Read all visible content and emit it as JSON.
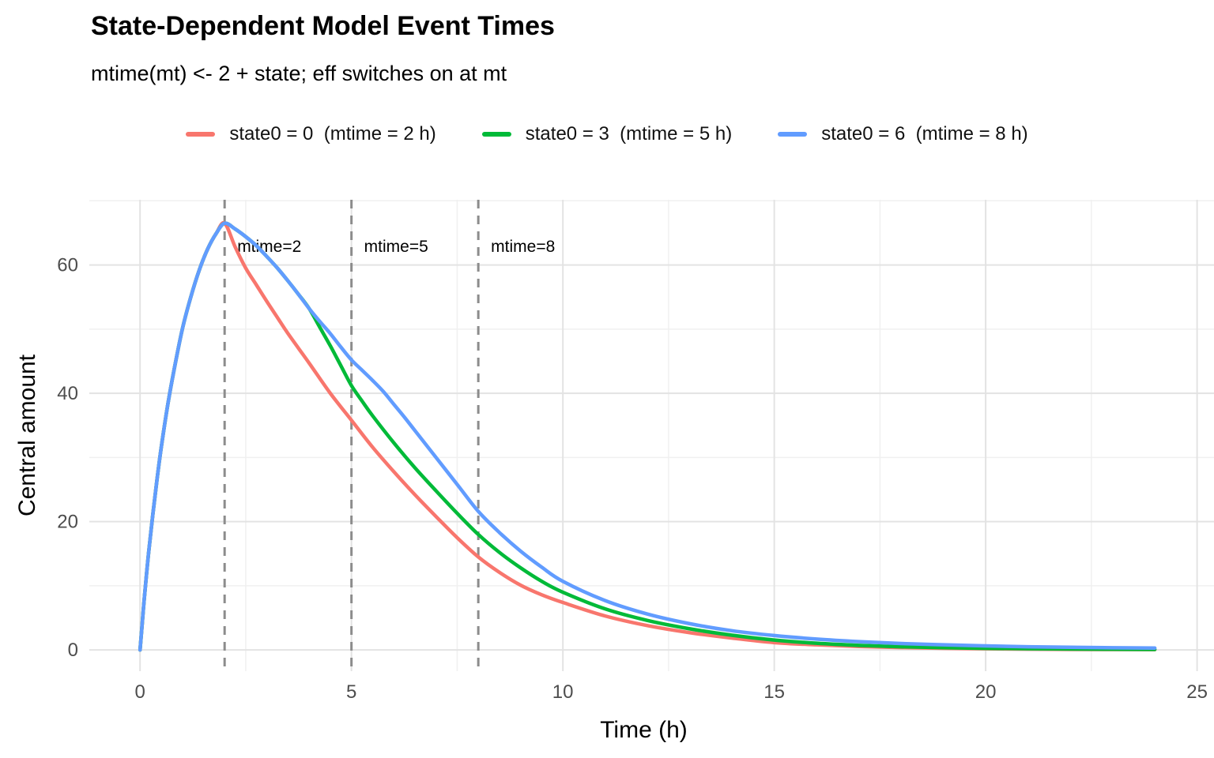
{
  "header": {
    "title": "State-Dependent Model Event Times",
    "subtitle": "mtime(mt) <- 2 + state;  eff switches on at mt"
  },
  "colors": {
    "series_red": "#F8766D",
    "series_green": "#00BA38",
    "series_blue": "#619CFF",
    "vline_gray": "#8C8C8C",
    "grid_major": "#E3E3E3",
    "grid_minor": "#F0F0F0",
    "tick_label": "#4D4D4D",
    "text_black": "#000000",
    "background": "#FFFFFF"
  },
  "chart_data": {
    "type": "line",
    "title": "State-Dependent Model Event Times",
    "subtitle": "mtime(mt) <- 2 + state;  eff switches on at mt",
    "xlabel": "Time (h)",
    "ylabel": "Central amount",
    "xlim": [
      -1.2,
      25.4
    ],
    "ylim": [
      -3.3,
      70.16
    ],
    "grid": true,
    "legend_position": "top",
    "x_ticks": [
      0,
      5,
      10,
      15,
      20,
      25
    ],
    "y_ticks": [
      0,
      20,
      40,
      60
    ],
    "x_minor_gridlines": [
      2.5,
      7.5,
      12.5,
      17.5,
      22.5
    ],
    "y_minor_gridlines": [
      10,
      30,
      50,
      70
    ],
    "vlines": [
      {
        "t": 2,
        "label": "mtime=2"
      },
      {
        "t": 5,
        "label": "mtime=5"
      },
      {
        "t": 8,
        "label": "mtime=8"
      }
    ],
    "series": [
      {
        "name": "state0 = 0",
        "legend_label": "state0 = 0  (mtime = 2 h)",
        "color": "#F8766D",
        "mtime_h": 2,
        "points": [
          [
            0,
            0
          ],
          [
            0.05,
            4
          ],
          [
            0.1,
            8
          ],
          [
            0.2,
            15
          ],
          [
            0.3,
            21
          ],
          [
            0.4,
            26.5
          ],
          [
            0.5,
            31.5
          ],
          [
            0.65,
            38
          ],
          [
            0.8,
            43.5
          ],
          [
            1,
            50
          ],
          [
            1.2,
            55
          ],
          [
            1.4,
            59.2
          ],
          [
            1.6,
            62.5
          ],
          [
            1.8,
            64.9
          ],
          [
            2,
            66.5
          ],
          [
            2.25,
            62.8
          ],
          [
            2.5,
            59.5
          ],
          [
            2.75,
            56.9
          ],
          [
            3,
            54.3
          ],
          [
            3.25,
            51.8
          ],
          [
            3.5,
            49.3
          ],
          [
            4,
            44.7
          ],
          [
            4.5,
            40
          ],
          [
            5,
            35.8
          ],
          [
            5.5,
            31.6
          ],
          [
            6,
            27.8
          ],
          [
            6.5,
            24.2
          ],
          [
            7,
            20.8
          ],
          [
            7.5,
            17.5
          ],
          [
            8,
            14.5
          ],
          [
            8.5,
            12.1
          ],
          [
            9,
            10.1
          ],
          [
            9.5,
            8.6
          ],
          [
            10,
            7.4
          ],
          [
            11,
            5.3
          ],
          [
            12,
            3.8
          ],
          [
            13,
            2.7
          ],
          [
            14,
            1.85
          ],
          [
            15,
            1.15
          ],
          [
            16,
            0.8
          ],
          [
            17,
            0.55
          ],
          [
            18,
            0.38
          ],
          [
            19,
            0.27
          ],
          [
            20,
            0.19
          ],
          [
            21,
            0.13
          ],
          [
            22,
            0.09
          ],
          [
            23,
            0.07
          ],
          [
            24,
            0.05
          ]
        ]
      },
      {
        "name": "state0 = 3",
        "legend_label": "state0 = 3  (mtime = 5 h)",
        "color": "#00BA38",
        "mtime_h": 5,
        "points": [
          [
            0,
            0
          ],
          [
            0.05,
            4
          ],
          [
            0.1,
            8
          ],
          [
            0.2,
            15
          ],
          [
            0.3,
            21
          ],
          [
            0.4,
            26.5
          ],
          [
            0.5,
            31.5
          ],
          [
            0.65,
            38
          ],
          [
            0.8,
            43.5
          ],
          [
            1,
            50
          ],
          [
            1.2,
            55
          ],
          [
            1.4,
            59.2
          ],
          [
            1.6,
            62.5
          ],
          [
            1.8,
            64.9
          ],
          [
            2,
            66.5
          ],
          [
            2.25,
            65.6
          ],
          [
            2.5,
            64.4
          ],
          [
            2.75,
            63
          ],
          [
            3,
            61.3
          ],
          [
            3.25,
            59.5
          ],
          [
            3.5,
            57.5
          ],
          [
            3.75,
            55.4
          ],
          [
            4,
            53.2
          ],
          [
            4.25,
            50.3
          ],
          [
            4.5,
            47.4
          ],
          [
            4.75,
            44.3
          ],
          [
            5,
            41.2
          ],
          [
            5.25,
            38.8
          ],
          [
            5.5,
            36.5
          ],
          [
            6,
            32.3
          ],
          [
            6.5,
            28.4
          ],
          [
            7,
            24.8
          ],
          [
            7.5,
            21.3
          ],
          [
            8,
            18
          ],
          [
            8.5,
            15.2
          ],
          [
            9,
            12.8
          ],
          [
            9.5,
            10.7
          ],
          [
            10,
            9
          ],
          [
            11,
            6.4
          ],
          [
            12,
            4.6
          ],
          [
            13,
            3.3
          ],
          [
            14,
            2.3
          ],
          [
            15,
            1.55
          ],
          [
            16,
            1.05
          ],
          [
            17,
            0.72
          ],
          [
            18,
            0.5
          ],
          [
            19,
            0.36
          ],
          [
            20,
            0.26
          ],
          [
            21,
            0.19
          ],
          [
            22,
            0.14
          ],
          [
            23,
            0.11
          ],
          [
            24,
            0.08
          ]
        ]
      },
      {
        "name": "state0 = 6",
        "legend_label": "state0 = 6  (mtime = 8 h)",
        "color": "#619CFF",
        "mtime_h": 8,
        "points": [
          [
            0,
            0
          ],
          [
            0.05,
            4
          ],
          [
            0.1,
            8
          ],
          [
            0.2,
            15
          ],
          [
            0.3,
            21
          ],
          [
            0.4,
            26.5
          ],
          [
            0.5,
            31.5
          ],
          [
            0.65,
            38
          ],
          [
            0.8,
            43.5
          ],
          [
            1,
            50
          ],
          [
            1.2,
            55
          ],
          [
            1.4,
            59.2
          ],
          [
            1.6,
            62.5
          ],
          [
            1.8,
            64.9
          ],
          [
            2,
            66.5
          ],
          [
            2.25,
            65.6
          ],
          [
            2.5,
            64.4
          ],
          [
            2.75,
            63
          ],
          [
            3,
            61.3
          ],
          [
            3.25,
            59.5
          ],
          [
            3.5,
            57.5
          ],
          [
            3.75,
            55.4
          ],
          [
            4,
            53.2
          ],
          [
            4.25,
            51.2
          ],
          [
            4.5,
            49.3
          ],
          [
            4.75,
            47.2
          ],
          [
            5,
            45.2
          ],
          [
            5.25,
            43.6
          ],
          [
            5.5,
            42
          ],
          [
            5.75,
            40.3
          ],
          [
            6,
            38.3
          ],
          [
            6.25,
            36.3
          ],
          [
            6.5,
            34.2
          ],
          [
            7,
            30
          ],
          [
            7.5,
            25.8
          ],
          [
            8,
            21.6
          ],
          [
            8.5,
            18.3
          ],
          [
            9,
            15.4
          ],
          [
            9.5,
            12.9
          ],
          [
            10,
            10.7
          ],
          [
            11,
            7.7
          ],
          [
            12,
            5.6
          ],
          [
            13,
            4.1
          ],
          [
            14,
            3
          ],
          [
            15,
            2.25
          ],
          [
            16,
            1.7
          ],
          [
            17,
            1.3
          ],
          [
            18,
            1
          ],
          [
            19,
            0.8
          ],
          [
            20,
            0.63
          ],
          [
            21,
            0.5
          ],
          [
            22,
            0.42
          ],
          [
            23,
            0.35
          ],
          [
            24,
            0.3
          ]
        ]
      }
    ]
  }
}
